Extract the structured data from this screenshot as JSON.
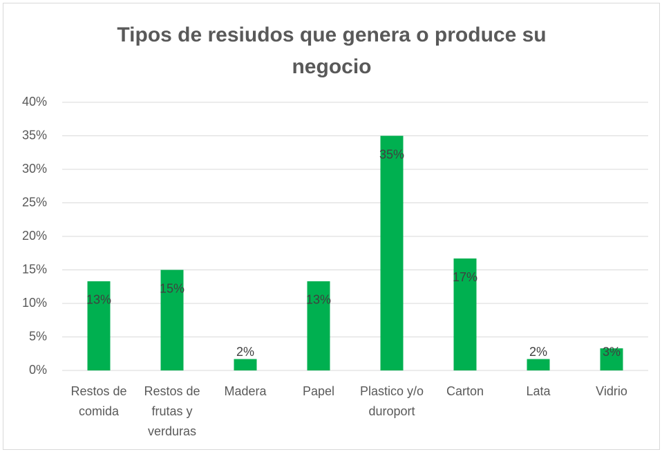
{
  "chart_data": {
    "type": "bar",
    "title": "Tipos de resiudos que genera o produce su negocio",
    "categories": [
      "Restos de comida",
      "Restos de frutas y verduras",
      "Madera",
      "Papel",
      "Plastico y/o duroport",
      "Carton",
      "Lata",
      "Vidrio"
    ],
    "values": [
      13.3,
      15,
      1.7,
      13.3,
      35,
      16.7,
      1.7,
      3.3
    ],
    "value_labels": [
      "13%",
      "15%",
      "2%",
      "13%",
      "35%",
      "17%",
      "2%",
      "3%"
    ],
    "color": "#00b050",
    "ylim": [
      0,
      40
    ],
    "yticks": [
      {
        "value": 0,
        "label": "0%"
      },
      {
        "value": 5,
        "label": "5%"
      },
      {
        "value": 10,
        "label": "10%"
      },
      {
        "value": 15,
        "label": "15%"
      },
      {
        "value": 20,
        "label": "20%"
      },
      {
        "value": 25,
        "label": "25%"
      },
      {
        "value": 30,
        "label": "30%"
      },
      {
        "value": 35,
        "label": "35%"
      },
      {
        "value": 40,
        "label": "40%"
      }
    ],
    "grid": true
  }
}
